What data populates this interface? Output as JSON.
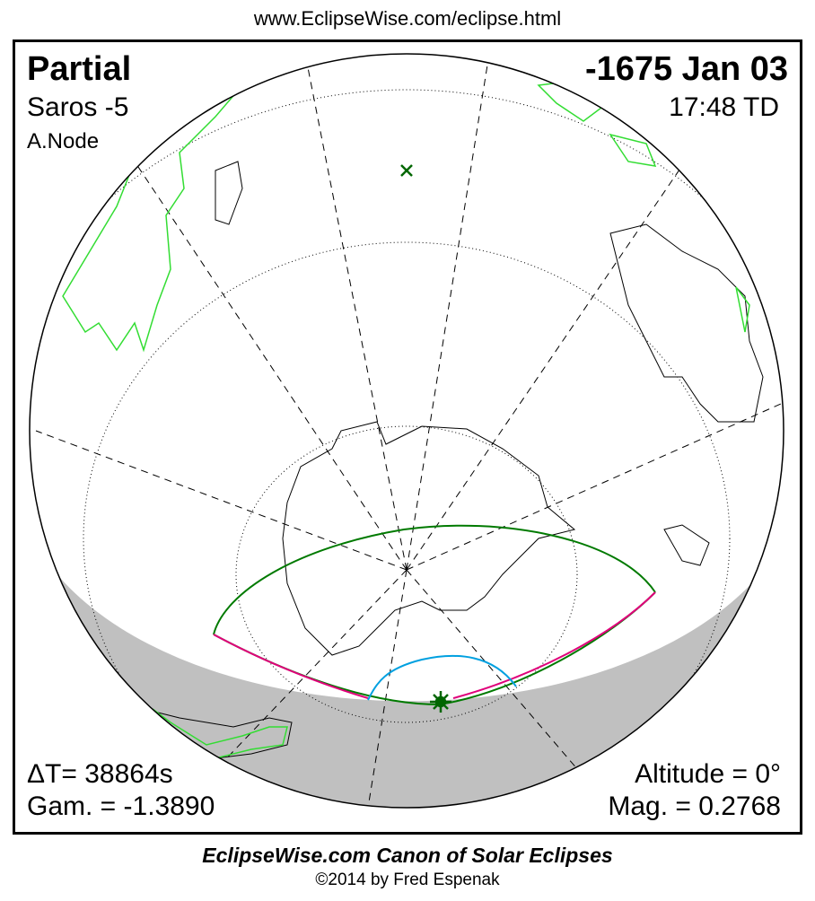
{
  "header_url": "www.EclipseWise.com/eclipse.html",
  "eclipse": {
    "type": "Partial",
    "saros": "Saros  -5",
    "node": "A.Node",
    "date": "-1675 Jan 03",
    "time": "17:48 TD",
    "delta_t": "ΔT=  38864s",
    "gamma": "Gam. = -1.3890",
    "altitude": "Altitude =  0°",
    "magnitude": "Mag. = 0.2768"
  },
  "footer": {
    "canon": "EclipseWise.com Canon of Solar Eclipses",
    "copyright": "©2014 by Fred Espenak"
  },
  "colors": {
    "night": "#c0c0c0",
    "eclipse_limits": "#007a00",
    "max_line": "#e0007a",
    "sunrise_curve": "#00a0e0",
    "land_green": "#33dd33",
    "marker": "#006600"
  }
}
